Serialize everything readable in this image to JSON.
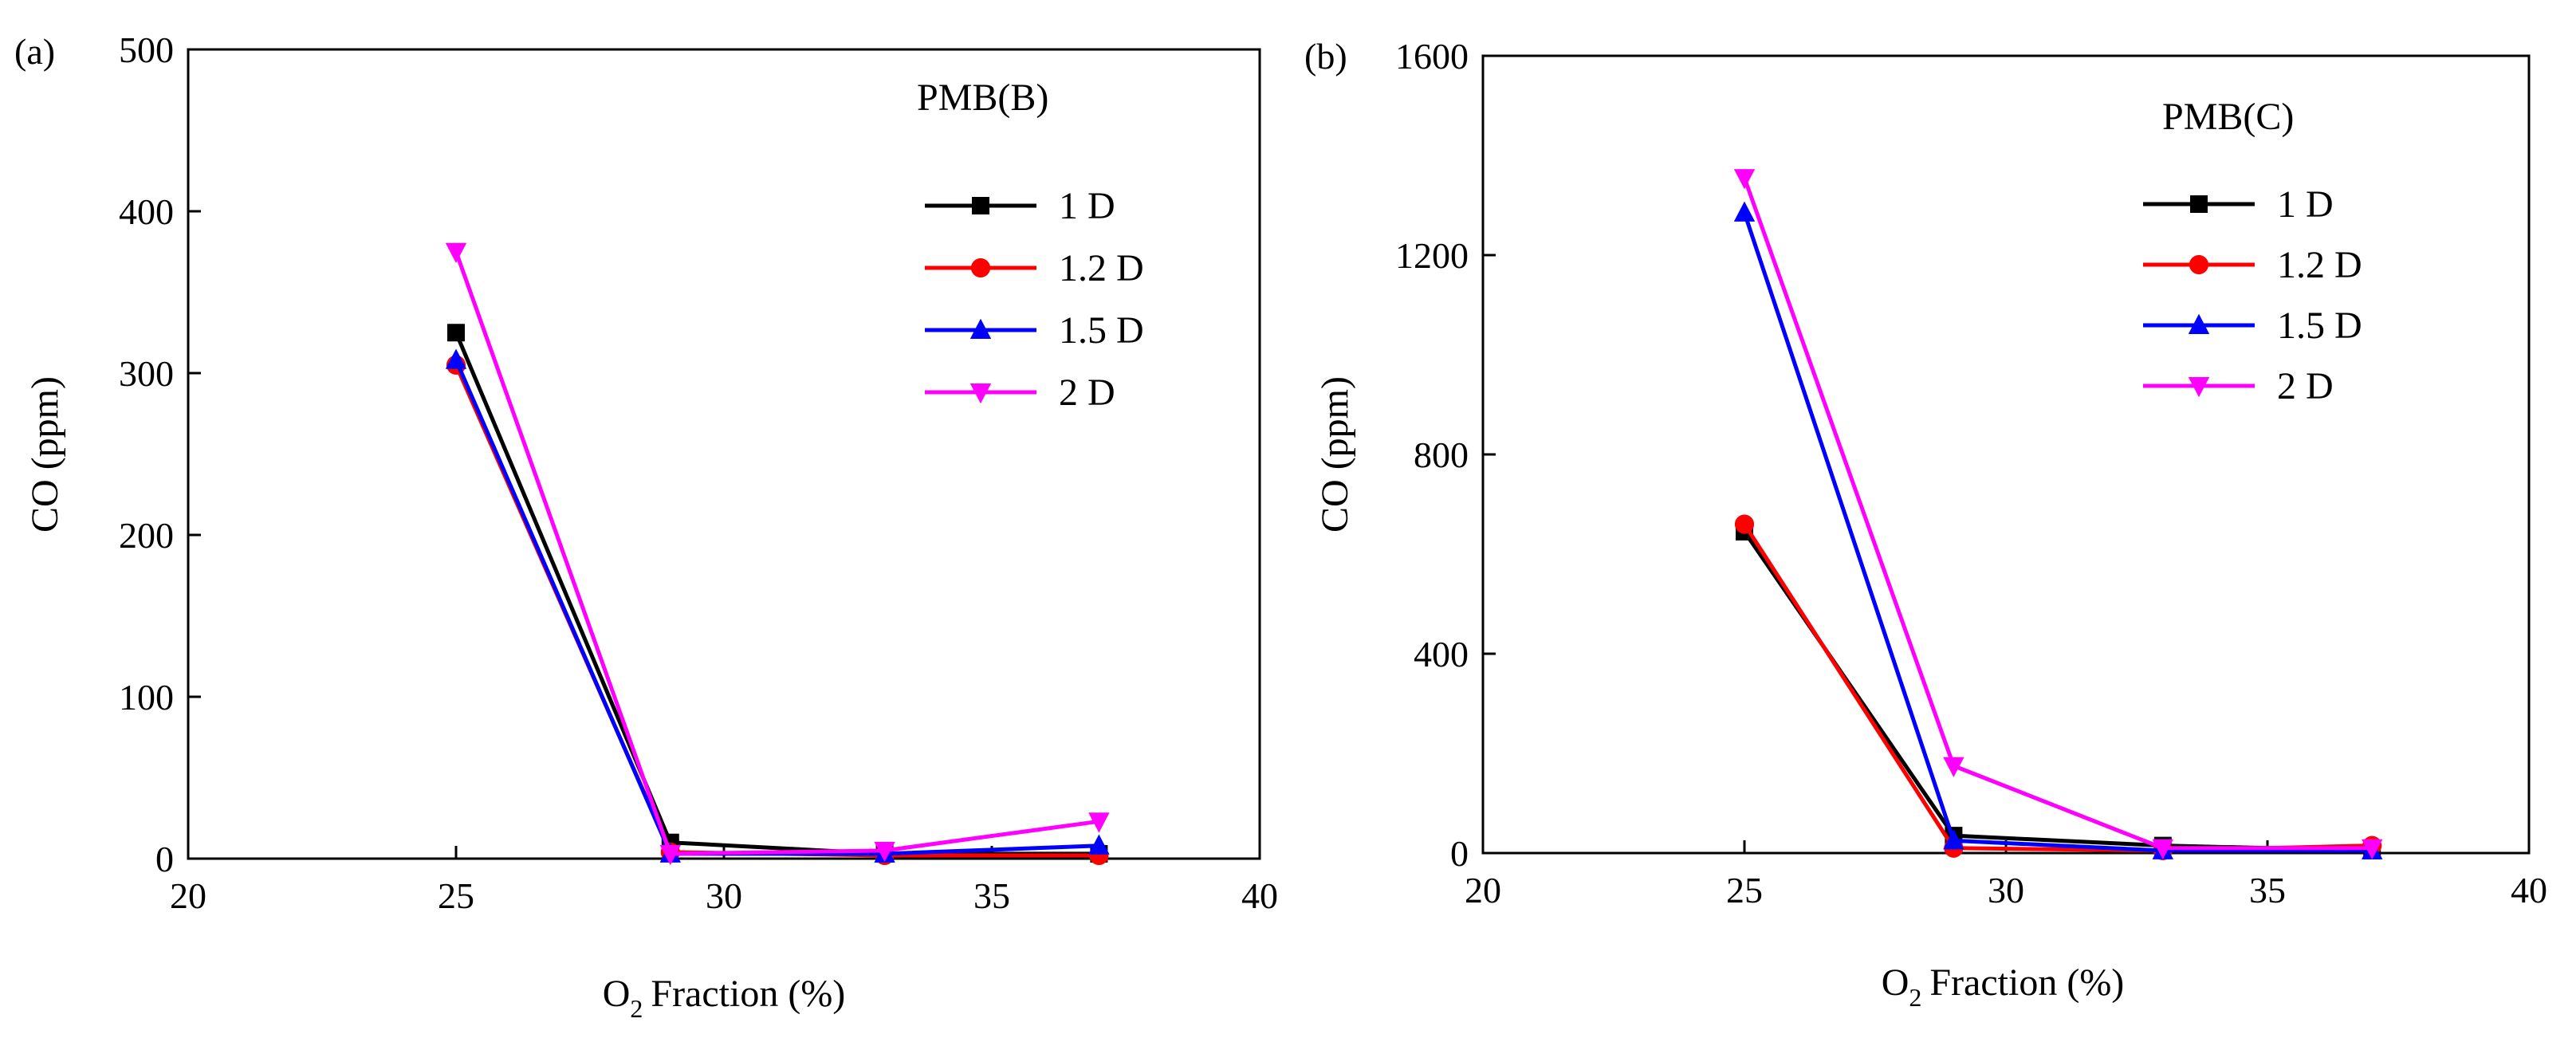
{
  "chart_data": [
    {
      "type": "line",
      "panel_label": "(a)",
      "title": "PMB(B)",
      "xlabel": "Fraction (%)",
      "xlabel_prefix": "O",
      "xlabel_sub": "2",
      "ylabel": "CO (ppm)",
      "xlim": [
        20,
        40
      ],
      "ylim": [
        0,
        500
      ],
      "xticks": [
        "20",
        "25",
        "30",
        "35",
        "40"
      ],
      "yticks": [
        "0",
        "100",
        "200",
        "300",
        "400",
        "500"
      ],
      "x": [
        25,
        29,
        33,
        37
      ],
      "legend_position": "top-right",
      "series": [
        {
          "name": "1 D",
          "color": "#000000",
          "marker": "square",
          "values": [
            325,
            10,
            3,
            3
          ]
        },
        {
          "name": "1.2 D",
          "color": "#ff0000",
          "marker": "circle",
          "values": [
            305,
            4,
            2,
            2
          ]
        },
        {
          "name": "1.5 D",
          "color": "#0000ff",
          "marker": "triangle-up",
          "values": [
            308,
            3,
            3,
            8
          ]
        },
        {
          "name": "2 D",
          "color": "#ff00ff",
          "marker": "triangle-down",
          "values": [
            375,
            3,
            5,
            23
          ]
        }
      ]
    },
    {
      "type": "line",
      "panel_label": "(b)",
      "title": "PMB(C)",
      "xlabel": "Fraction (%)",
      "xlabel_prefix": "O",
      "xlabel_sub": "2",
      "ylabel": "CO (ppm)",
      "xlim": [
        20,
        40
      ],
      "ylim": [
        0,
        1600
      ],
      "xticks": [
        "20",
        "25",
        "30",
        "35",
        "40"
      ],
      "yticks": [
        "0",
        "400",
        "800",
        "1200",
        "1600"
      ],
      "x": [
        25,
        29,
        33,
        37
      ],
      "legend_position": "top-right",
      "series": [
        {
          "name": "1 D",
          "color": "#000000",
          "marker": "square",
          "values": [
            645,
            35,
            15,
            5
          ]
        },
        {
          "name": "1.2 D",
          "color": "#ff0000",
          "marker": "circle",
          "values": [
            660,
            10,
            5,
            15
          ]
        },
        {
          "name": "1.5 D",
          "color": "#0000ff",
          "marker": "triangle-up",
          "values": [
            1285,
            25,
            5,
            5
          ]
        },
        {
          "name": "2 D",
          "color": "#ff00ff",
          "marker": "triangle-down",
          "values": [
            1355,
            175,
            10,
            10
          ]
        }
      ]
    }
  ]
}
